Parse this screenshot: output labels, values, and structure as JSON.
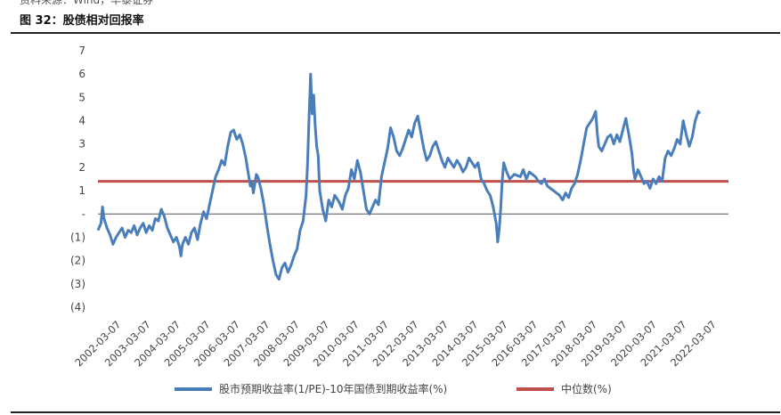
{
  "header": {
    "source_line": "资料来源：Wind，华泰证券",
    "figure_title": "图 32：股债相对回报率"
  },
  "chart_data": {
    "type": "line",
    "title": "",
    "xlabel": "",
    "ylabel": "",
    "ylim": [
      -4,
      7
    ],
    "grid": false,
    "legend_placement": "bottom",
    "y_ticks": [
      {
        "value": 7,
        "label": "7"
      },
      {
        "value": 6,
        "label": "6"
      },
      {
        "value": 5,
        "label": "5"
      },
      {
        "value": 4,
        "label": "4"
      },
      {
        "value": 3,
        "label": "3"
      },
      {
        "value": 2,
        "label": "2"
      },
      {
        "value": 1,
        "label": "1"
      },
      {
        "value": 0,
        "label": "-"
      },
      {
        "value": -1,
        "label": "(1)"
      },
      {
        "value": -2,
        "label": "(2)"
      },
      {
        "value": -3,
        "label": "(3)"
      },
      {
        "value": -4,
        "label": "(4)"
      }
    ],
    "x_tick_labels": [
      "2002-03-07",
      "2003-03-07",
      "2004-03-07",
      "2005-03-07",
      "2006-03-07",
      "2007-03-07",
      "2008-03-07",
      "2009-03-07",
      "2010-03-07",
      "2011-03-07",
      "2012-03-07",
      "2013-03-07",
      "2014-03-07",
      "2015-03-07",
      "2016-03-07",
      "2017-03-07",
      "2018-03-07",
      "2019-03-07",
      "2020-03-07",
      "2021-03-07",
      "2022-03-07"
    ],
    "x_range": [
      2002.0,
      2022.9
    ],
    "series": [
      {
        "name": "股市预期收益率(1/PE)-10年国债到期收益率(%)",
        "color": "#4a7ebb",
        "points": [
          [
            2002.0,
            -0.7
          ],
          [
            2002.1,
            -0.4
          ],
          [
            2002.15,
            0.3
          ],
          [
            2002.2,
            -0.2
          ],
          [
            2002.3,
            -0.6
          ],
          [
            2002.4,
            -0.9
          ],
          [
            2002.5,
            -1.3
          ],
          [
            2002.6,
            -1.0
          ],
          [
            2002.7,
            -0.8
          ],
          [
            2002.8,
            -0.6
          ],
          [
            2002.9,
            -1.0
          ],
          [
            2003.0,
            -0.7
          ],
          [
            2003.1,
            -0.8
          ],
          [
            2003.2,
            -0.5
          ],
          [
            2003.3,
            -0.9
          ],
          [
            2003.4,
            -0.6
          ],
          [
            2003.5,
            -0.4
          ],
          [
            2003.6,
            -0.8
          ],
          [
            2003.7,
            -0.5
          ],
          [
            2003.8,
            -0.7
          ],
          [
            2003.9,
            -0.2
          ],
          [
            2004.0,
            -0.3
          ],
          [
            2004.1,
            0.2
          ],
          [
            2004.2,
            -0.1
          ],
          [
            2004.3,
            -0.6
          ],
          [
            2004.4,
            -0.9
          ],
          [
            2004.5,
            -1.2
          ],
          [
            2004.6,
            -1.0
          ],
          [
            2004.7,
            -1.4
          ],
          [
            2004.75,
            -1.8
          ],
          [
            2004.8,
            -1.3
          ],
          [
            2004.9,
            -1.0
          ],
          [
            2005.0,
            -1.3
          ],
          [
            2005.1,
            -0.8
          ],
          [
            2005.2,
            -0.6
          ],
          [
            2005.3,
            -1.1
          ],
          [
            2005.4,
            -0.4
          ],
          [
            2005.5,
            0.1
          ],
          [
            2005.6,
            -0.2
          ],
          [
            2005.7,
            0.4
          ],
          [
            2005.8,
            1.0
          ],
          [
            2005.9,
            1.6
          ],
          [
            2006.0,
            1.9
          ],
          [
            2006.1,
            2.3
          ],
          [
            2006.2,
            2.1
          ],
          [
            2006.3,
            2.9
          ],
          [
            2006.4,
            3.5
          ],
          [
            2006.5,
            3.6
          ],
          [
            2006.6,
            3.2
          ],
          [
            2006.7,
            3.4
          ],
          [
            2006.8,
            3.0
          ],
          [
            2006.9,
            2.4
          ],
          [
            2007.0,
            1.6
          ],
          [
            2007.05,
            1.2
          ],
          [
            2007.1,
            1.4
          ],
          [
            2007.15,
            0.9
          ],
          [
            2007.25,
            1.7
          ],
          [
            2007.3,
            1.6
          ],
          [
            2007.4,
            1.1
          ],
          [
            2007.5,
            0.4
          ],
          [
            2007.6,
            -0.5
          ],
          [
            2007.7,
            -1.3
          ],
          [
            2007.8,
            -2.0
          ],
          [
            2007.9,
            -2.6
          ],
          [
            2008.0,
            -2.8
          ],
          [
            2008.1,
            -2.3
          ],
          [
            2008.2,
            -2.1
          ],
          [
            2008.3,
            -2.5
          ],
          [
            2008.4,
            -2.2
          ],
          [
            2008.5,
            -1.8
          ],
          [
            2008.6,
            -1.5
          ],
          [
            2008.7,
            -0.7
          ],
          [
            2008.8,
            -0.3
          ],
          [
            2008.9,
            0.8
          ],
          [
            2008.95,
            2.2
          ],
          [
            2009.0,
            4.2
          ],
          [
            2009.05,
            6.0
          ],
          [
            2009.1,
            4.3
          ],
          [
            2009.15,
            5.1
          ],
          [
            2009.2,
            3.8
          ],
          [
            2009.25,
            2.9
          ],
          [
            2009.3,
            2.5
          ],
          [
            2009.35,
            1.0
          ],
          [
            2009.45,
            0.2
          ],
          [
            2009.55,
            -0.3
          ],
          [
            2009.65,
            0.6
          ],
          [
            2009.75,
            0.3
          ],
          [
            2009.85,
            0.8
          ],
          [
            2010.0,
            0.5
          ],
          [
            2010.1,
            0.2
          ],
          [
            2010.2,
            0.8
          ],
          [
            2010.3,
            1.1
          ],
          [
            2010.4,
            1.9
          ],
          [
            2010.5,
            1.5
          ],
          [
            2010.6,
            2.3
          ],
          [
            2010.7,
            1.8
          ],
          [
            2010.8,
            1.0
          ],
          [
            2010.9,
            0.2
          ],
          [
            2011.0,
            0.0
          ],
          [
            2011.1,
            0.3
          ],
          [
            2011.2,
            0.6
          ],
          [
            2011.3,
            0.4
          ],
          [
            2011.4,
            1.6
          ],
          [
            2011.5,
            2.2
          ],
          [
            2011.6,
            2.8
          ],
          [
            2011.7,
            3.7
          ],
          [
            2011.8,
            3.3
          ],
          [
            2011.9,
            2.7
          ],
          [
            2012.0,
            2.5
          ],
          [
            2012.1,
            2.8
          ],
          [
            2012.2,
            3.2
          ],
          [
            2012.3,
            3.6
          ],
          [
            2012.4,
            3.3
          ],
          [
            2012.5,
            3.9
          ],
          [
            2012.6,
            4.2
          ],
          [
            2012.7,
            3.5
          ],
          [
            2012.8,
            2.8
          ],
          [
            2012.9,
            2.3
          ],
          [
            2013.0,
            2.5
          ],
          [
            2013.1,
            2.9
          ],
          [
            2013.2,
            3.1
          ],
          [
            2013.3,
            2.7
          ],
          [
            2013.4,
            2.3
          ],
          [
            2013.5,
            2.0
          ],
          [
            2013.6,
            2.4
          ],
          [
            2013.7,
            2.2
          ],
          [
            2013.8,
            2.0
          ],
          [
            2013.9,
            2.3
          ],
          [
            2014.0,
            2.1
          ],
          [
            2014.1,
            1.8
          ],
          [
            2014.2,
            2.0
          ],
          [
            2014.3,
            2.4
          ],
          [
            2014.4,
            2.2
          ],
          [
            2014.5,
            2.0
          ],
          [
            2014.6,
            2.2
          ],
          [
            2014.7,
            1.5
          ],
          [
            2014.8,
            1.3
          ],
          [
            2014.9,
            1.0
          ],
          [
            2015.0,
            0.8
          ],
          [
            2015.1,
            0.3
          ],
          [
            2015.2,
            -0.4
          ],
          [
            2015.25,
            -1.2
          ],
          [
            2015.3,
            -0.7
          ],
          [
            2015.35,
            0.2
          ],
          [
            2015.4,
            1.4
          ],
          [
            2015.45,
            2.2
          ],
          [
            2015.55,
            1.8
          ],
          [
            2015.65,
            1.5
          ],
          [
            2015.8,
            1.7
          ],
          [
            2016.0,
            1.6
          ],
          [
            2016.1,
            1.9
          ],
          [
            2016.2,
            1.5
          ],
          [
            2016.3,
            1.8
          ],
          [
            2016.4,
            1.7
          ],
          [
            2016.5,
            1.6
          ],
          [
            2016.6,
            1.4
          ],
          [
            2016.7,
            1.3
          ],
          [
            2016.8,
            1.5
          ],
          [
            2016.9,
            1.2
          ],
          [
            2017.0,
            1.1
          ],
          [
            2017.1,
            1.0
          ],
          [
            2017.2,
            0.9
          ],
          [
            2017.3,
            0.8
          ],
          [
            2017.4,
            0.6
          ],
          [
            2017.5,
            0.9
          ],
          [
            2017.6,
            0.7
          ],
          [
            2017.7,
            1.1
          ],
          [
            2017.8,
            1.3
          ],
          [
            2017.9,
            1.7
          ],
          [
            2018.0,
            2.3
          ],
          [
            2018.1,
            3.0
          ],
          [
            2018.2,
            3.7
          ],
          [
            2018.3,
            3.9
          ],
          [
            2018.4,
            4.1
          ],
          [
            2018.5,
            4.4
          ],
          [
            2018.55,
            3.5
          ],
          [
            2018.6,
            2.9
          ],
          [
            2018.7,
            2.7
          ],
          [
            2018.8,
            3.0
          ],
          [
            2018.9,
            3.3
          ],
          [
            2019.0,
            3.4
          ],
          [
            2019.1,
            3.0
          ],
          [
            2019.2,
            3.4
          ],
          [
            2019.3,
            3.1
          ],
          [
            2019.4,
            3.6
          ],
          [
            2019.5,
            4.1
          ],
          [
            2019.6,
            3.4
          ],
          [
            2019.7,
            2.6
          ],
          [
            2019.75,
            1.9
          ],
          [
            2019.8,
            1.5
          ],
          [
            2019.9,
            1.9
          ],
          [
            2020.0,
            1.6
          ],
          [
            2020.1,
            1.3
          ],
          [
            2020.2,
            1.4
          ],
          [
            2020.3,
            1.1
          ],
          [
            2020.4,
            1.5
          ],
          [
            2020.5,
            1.3
          ],
          [
            2020.6,
            1.6
          ],
          [
            2020.7,
            1.4
          ],
          [
            2020.8,
            2.4
          ],
          [
            2020.9,
            2.7
          ],
          [
            2021.0,
            2.5
          ],
          [
            2021.1,
            2.8
          ],
          [
            2021.2,
            3.2
          ],
          [
            2021.3,
            3.0
          ],
          [
            2021.4,
            4.0
          ],
          [
            2021.5,
            3.4
          ],
          [
            2021.6,
            2.9
          ],
          [
            2021.7,
            3.3
          ],
          [
            2021.8,
            4.0
          ],
          [
            2021.9,
            4.4
          ],
          [
            2021.95,
            4.3
          ]
        ]
      },
      {
        "name": "中位数(%)",
        "color": "#c0504d",
        "value": 1.4
      }
    ]
  }
}
